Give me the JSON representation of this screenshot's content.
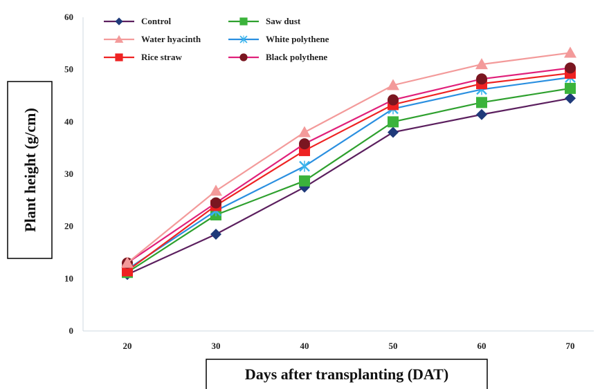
{
  "chart_data": {
    "type": "line",
    "xlabel": "Days after transplanting (DAT)",
    "ylabel": "Plant height (g/cm)",
    "x": [
      20,
      30,
      40,
      50,
      60,
      70
    ],
    "ylim": [
      0,
      60
    ],
    "yticks": [
      0,
      10,
      20,
      30,
      40,
      50,
      60
    ],
    "grid": false,
    "legend_position": "top-left",
    "series": [
      {
        "name": "Control",
        "color": "#5b1f5e",
        "marker": "diamond",
        "marker_color": "#1f3a7a",
        "values": [
          10.8,
          18.5,
          27.5,
          38.0,
          41.4,
          44.5
        ]
      },
      {
        "name": "Saw dust",
        "color": "#2ea02e",
        "marker": "square",
        "marker_color": "#3bb33b",
        "values": [
          11.2,
          22.2,
          28.7,
          40.0,
          43.7,
          46.4
        ]
      },
      {
        "name": "Water hyacinth",
        "color": "#f39a9a",
        "marker": "triangle",
        "marker_color": "#f39a9a",
        "values": [
          13.0,
          26.8,
          38.0,
          47.0,
          51.0,
          53.2
        ]
      },
      {
        "name": "White polythene",
        "color": "#2a8fe0",
        "marker": "x",
        "marker_color": "#3ab3ec",
        "values": [
          11.8,
          23.0,
          31.5,
          42.5,
          46.2,
          48.5
        ]
      },
      {
        "name": "Rice straw",
        "color": "#ee2222",
        "marker": "square",
        "marker_color": "#ee2222",
        "values": [
          11.5,
          24.0,
          34.5,
          43.3,
          47.3,
          49.3
        ]
      },
      {
        "name": "Black polythene",
        "color": "#e0207a",
        "marker": "circle",
        "marker_color": "#7a1620",
        "values": [
          13.0,
          24.5,
          35.8,
          44.2,
          48.2,
          50.3
        ]
      }
    ]
  }
}
